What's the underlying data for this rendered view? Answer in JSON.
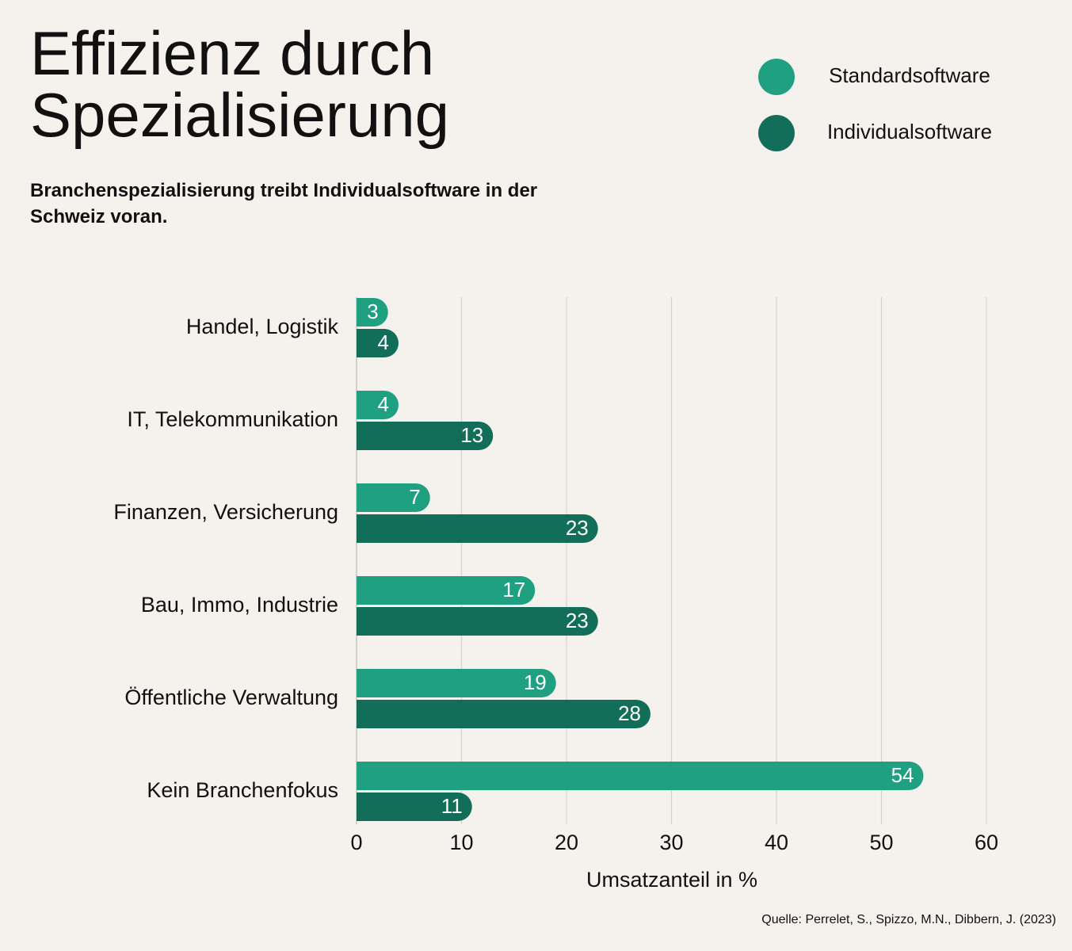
{
  "chart_data": {
    "type": "bar",
    "orientation": "horizontal",
    "title": "Effizienz durch Spezialisierung",
    "subtitle": "Branchenspezialisierung treibt Individualsoftware in der Schweiz voran.",
    "x_label": "Umsatzanteil in %",
    "source": "Quelle: Perrelet, S., Spizzo, M.N., Dibbern, J. (2023)",
    "categories": [
      "Handel, Logistik",
      "IT, Telekommunikation",
      "Finanzen, Versicherung",
      "Bau, Immo, Industrie",
      "Öffentliche Verwaltung",
      "Kein Branchenfokus"
    ],
    "series": [
      {
        "name": "Standardsoftware",
        "color": "#1fa080",
        "values": [
          3,
          4,
          7,
          17,
          19,
          54
        ]
      },
      {
        "name": "Individualsoftware",
        "color": "#126e58",
        "values": [
          4,
          13,
          23,
          23,
          28,
          11
        ]
      }
    ],
    "xlim": [
      0,
      60
    ],
    "xticks": [
      0,
      10,
      20,
      30,
      40,
      50,
      60
    ],
    "grid": true,
    "legend": "top-right"
  }
}
